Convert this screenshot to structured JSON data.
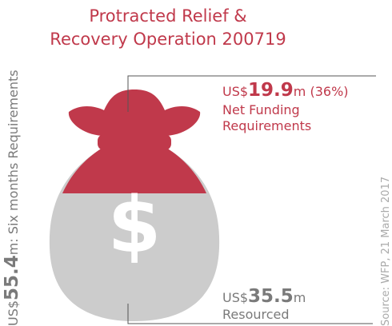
{
  "title": {
    "line1": "Protracted Relief &",
    "line2": "Recovery Operation 200719"
  },
  "net_funding": {
    "prefix": "US$",
    "amount": "19.9",
    "suffix": "m (36%)",
    "label1": "Net Funding",
    "label2": "Requirements"
  },
  "resourced": {
    "prefix": "US$",
    "amount": "35.5",
    "suffix": "m",
    "label": "Resourced"
  },
  "total": {
    "prefix": "US$",
    "amount": "55.4",
    "suffix": "m: Six months Requirements"
  },
  "bag_symbol": "$",
  "source": "Source: WFP, 21 March 2017"
}
